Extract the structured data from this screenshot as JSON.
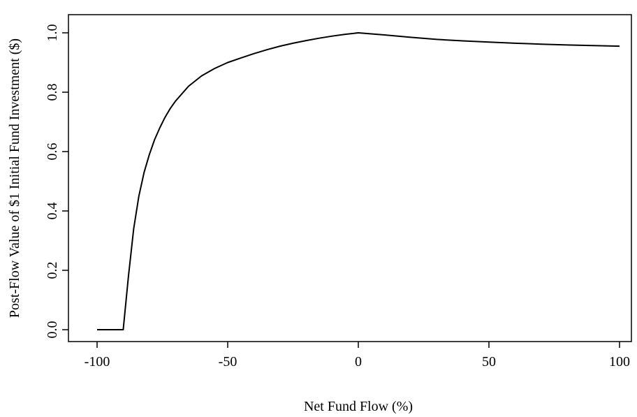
{
  "chart_data": {
    "type": "line",
    "title": "",
    "xlabel": "Net Fund Flow (%)",
    "ylabel": "Post-Flow Value of $1 Initial Fund Investment ($)",
    "xlim": [
      -100,
      100
    ],
    "ylim": [
      0,
      1.0
    ],
    "x_ticks": [
      "-100",
      "-50",
      "0",
      "50",
      "100"
    ],
    "y_ticks": [
      "0.0",
      "0.2",
      "0.4",
      "0.6",
      "0.8",
      "1.0"
    ],
    "grid": false,
    "legend": "none",
    "series": [
      {
        "x": [
          -100,
          -90,
          -88,
          -86,
          -84,
          -82,
          -80,
          -78,
          -76,
          -74,
          -72,
          -70,
          -65,
          -60,
          -55,
          -50,
          -45,
          -40,
          -35,
          -30,
          -25,
          -20,
          -15,
          -10,
          -5,
          0,
          10,
          20,
          30,
          40,
          50,
          60,
          70,
          80,
          90,
          100
        ],
        "values": [
          0.0,
          0.0,
          0.18,
          0.34,
          0.45,
          0.53,
          0.59,
          0.64,
          0.68,
          0.715,
          0.745,
          0.77,
          0.82,
          0.855,
          0.88,
          0.9,
          0.915,
          0.93,
          0.943,
          0.955,
          0.965,
          0.974,
          0.982,
          0.989,
          0.995,
          1.0,
          0.993,
          0.985,
          0.978,
          0.973,
          0.969,
          0.965,
          0.962,
          0.959,
          0.957,
          0.955
        ],
        "color": "#000000"
      }
    ]
  }
}
